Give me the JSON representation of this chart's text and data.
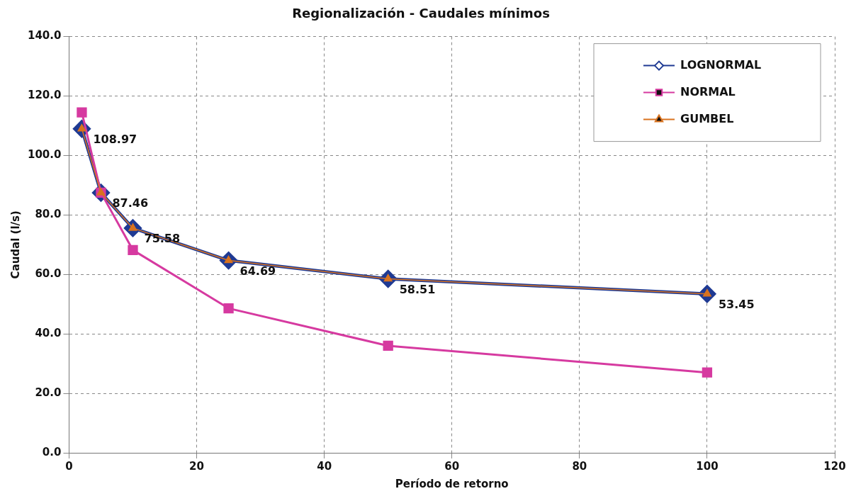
{
  "chart_data": {
    "type": "line",
    "title": "Regionalización - Caudales mínimos",
    "xlabel": "Período de retorno",
    "ylabel": "Caudal (l/s)",
    "xlim": [
      0,
      120
    ],
    "xticks": [
      0,
      20,
      40,
      60,
      80,
      100,
      120
    ],
    "ylim": [
      0,
      140
    ],
    "yticks": [
      {
        "value": 0,
        "label": "0.0"
      },
      {
        "value": 20,
        "label": "20.0"
      },
      {
        "value": 40,
        "label": "40.0"
      },
      {
        "value": 60,
        "label": "60.0"
      },
      {
        "value": 80,
        "label": "80.0"
      },
      {
        "value": 100,
        "label": "100.0"
      },
      {
        "value": 120,
        "label": "120.0"
      },
      {
        "value": 140,
        "label": "140.0"
      }
    ],
    "grid": true,
    "legend": "top right",
    "line_style": "solid",
    "series": [
      {
        "name": "LOGNORMAL",
        "color": "#1f3a93",
        "marker": "diamond",
        "x": [
          2,
          5,
          10,
          25,
          50,
          100
        ],
        "values": [
          108.97,
          87.46,
          75.58,
          64.69,
          58.51,
          53.45
        ]
      },
      {
        "name": "NORMAL",
        "color": "#d63aa0",
        "marker": "square",
        "x": [
          2,
          5,
          10,
          25,
          50,
          100
        ],
        "values": [
          114.5,
          87.5,
          68.2,
          48.6,
          36,
          27
        ]
      },
      {
        "name": "GUMBEL",
        "color": "#d9731f",
        "marker": "triangle",
        "x": [
          2,
          5,
          10,
          25,
          50,
          100
        ],
        "values": [
          108.97,
          87.46,
          75.58,
          64.69,
          58.51,
          53.45
        ],
        "value_labels": [
          "108.97",
          "87.46",
          "75.58",
          "64.69",
          "58.51",
          "53.45"
        ]
      }
    ]
  }
}
